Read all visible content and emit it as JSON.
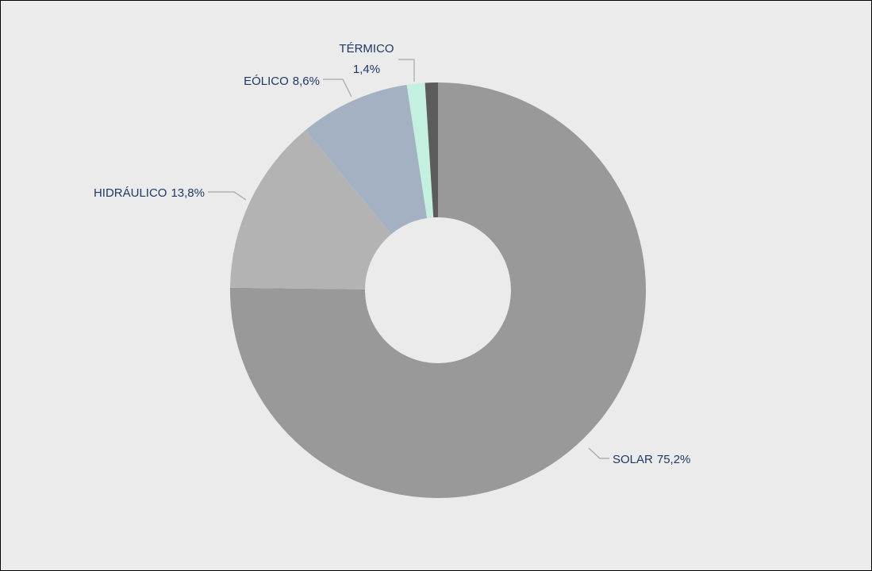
{
  "chart_data": {
    "type": "donut",
    "categories": [
      "SOLAR",
      "HIDRÁULICO",
      "EÓLICO",
      "TÉRMICO",
      null
    ],
    "values": [
      75.2,
      13.8,
      8.6,
      1.4,
      1.0
    ],
    "value_labels": [
      "75,2%",
      "13,8%",
      "8,6%",
      "1,4%",
      null
    ],
    "colors": [
      "#999999",
      "#b3b3b3",
      "#a3b1c2",
      "#c3f0df",
      "#5c5c5c"
    ]
  }
}
